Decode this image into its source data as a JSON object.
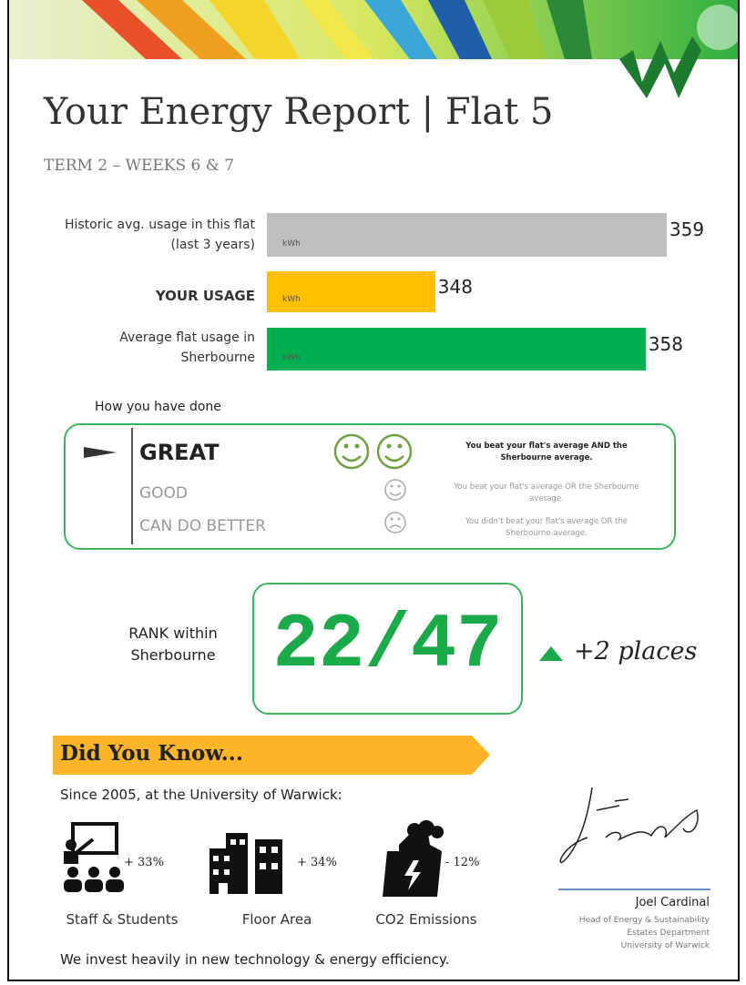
{
  "header": {
    "title": "Your Energy Report | Flat 5",
    "subtitle": "TERM 2 – WEEKS 6 & 7"
  },
  "usage": {
    "unit": "kWh",
    "xlim": [
      340,
      360
    ],
    "bars": [
      {
        "label": "Historic avg. usage in this flat (last 3 years)",
        "value": 359,
        "color": "#bfbfbf"
      },
      {
        "label": "YOUR USAGE",
        "value": 348,
        "color": "#ffc000"
      },
      {
        "label": "Average flat usage in Sherbourne",
        "value": 358,
        "color": "#00b050"
      }
    ]
  },
  "performance": {
    "heading": "How you have done",
    "levels": [
      {
        "label": "GREAT",
        "description": "You beat your flat's average AND the Sherbourne average."
      },
      {
        "label": "GOOD",
        "description": "You beat your flat's average OR the Sherbourne average."
      },
      {
        "label": "CAN DO BETTER",
        "description": "You didn't beat your flat's average OR the Sherbourne average."
      }
    ]
  },
  "rank": {
    "label": "RANK within Sherbourne",
    "value": "22/47",
    "change": "+2 places"
  },
  "did_you_know": {
    "title": "Did You Know...",
    "intro": "Since 2005, at the University of Warwick:",
    "stats": [
      {
        "change": "+ 33%",
        "label": "Staff & Students"
      },
      {
        "change": "+ 34%",
        "label": "Floor Area"
      },
      {
        "change": "- 12%",
        "label": "CO2 Emissions"
      }
    ],
    "footer": "We invest heavily in new technology & energy efficiency."
  },
  "signature": {
    "name": "Joel Cardinal",
    "lines": [
      "Head of Energy & Sustainability",
      "Estates Department",
      "University of Warwick"
    ]
  }
}
